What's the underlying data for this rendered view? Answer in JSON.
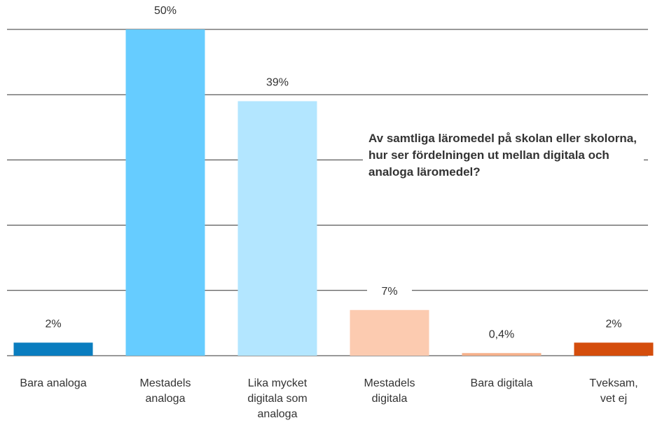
{
  "chart_data": {
    "type": "bar",
    "title": "Av samtliga läromedel på skolan eller skolorna, hur ser fördelningen ut mellan digitala och analoga läromedel?",
    "categories": [
      "Bara analoga",
      "Mestadels\nanaloga",
      "Lika mycket\ndigitala som\nanaloga",
      "Mestadels\ndigitala",
      "Bara digitala",
      "Tveksam,\nvet ej"
    ],
    "values": [
      2,
      50,
      39,
      7,
      0.4,
      2
    ],
    "value_labels": [
      "2%",
      "50%",
      "39%",
      "7%",
      "0,4%",
      "2%"
    ],
    "colors": [
      "#0a7dbf",
      "#66ccff",
      "#b3e6ff",
      "#fccbb0",
      "#f5b08a",
      "#d44d0c"
    ],
    "ylim": [
      0,
      50
    ],
    "yticks": [
      0,
      10,
      20,
      30,
      40,
      50
    ],
    "grid": true
  }
}
